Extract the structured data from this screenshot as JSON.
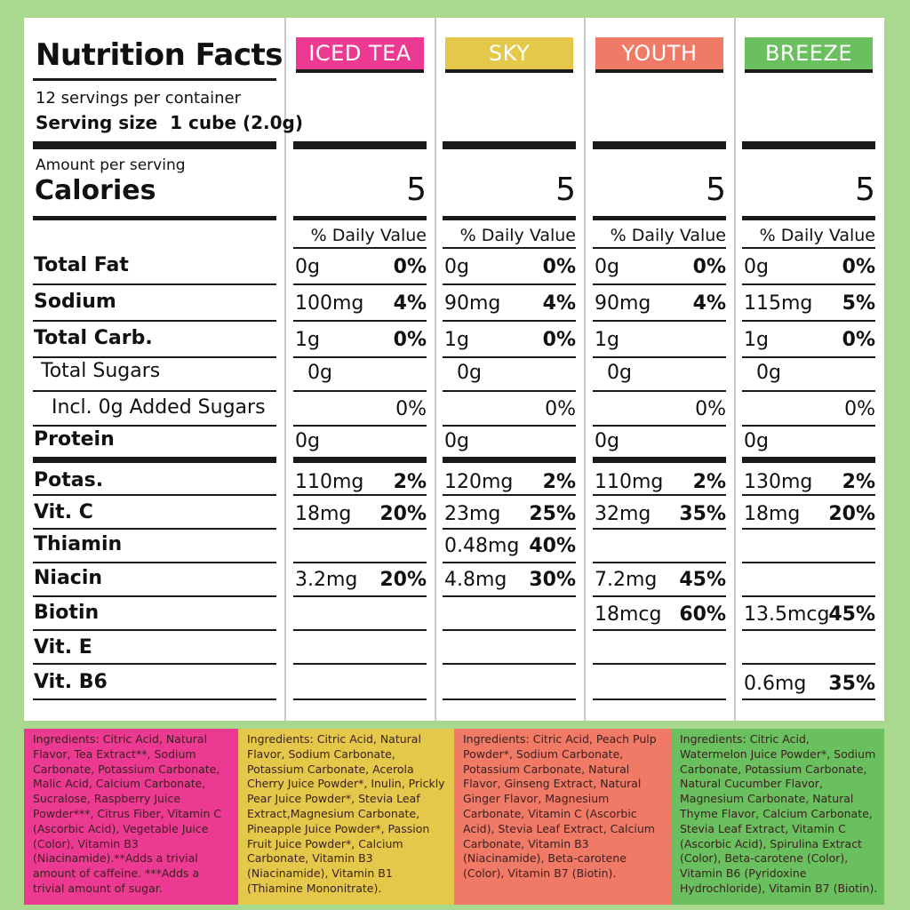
{
  "title": "Nutrition Facts",
  "servings": "12 servings per container",
  "serving_size_label": "Serving size",
  "serving_size_value": "1 cube (2.0g)",
  "amount_per_serving": "Amount per serving",
  "calories_label": "Calories",
  "daily_value_label": "% Daily Value",
  "rows": [
    {
      "label": "Total Fat"
    },
    {
      "label": "Sodium"
    },
    {
      "label": "Total Carb."
    },
    {
      "label": "Total Sugars"
    },
    {
      "label": "Incl. 0g Added Sugars"
    },
    {
      "label": "Protein"
    },
    {
      "label": "Potas."
    },
    {
      "label": "Vit. C"
    },
    {
      "label": "Thiamin"
    },
    {
      "label": "Niacin"
    },
    {
      "label": "Biotin"
    },
    {
      "label": "Vit. E"
    },
    {
      "label": "Vit. B6"
    }
  ],
  "products": [
    {
      "name": "ICED TEA",
      "color": "#ec3a93",
      "calories": "5",
      "values": [
        [
          "0g",
          "0%"
        ],
        [
          "100mg",
          "4%"
        ],
        [
          "1g",
          "0%"
        ],
        [
          "0g",
          ""
        ],
        [
          "",
          "0%"
        ],
        [
          "0g",
          ""
        ],
        [
          "110mg",
          "2%"
        ],
        [
          "18mg",
          "20%"
        ],
        [
          "",
          ""
        ],
        [
          "3.2mg",
          "20%"
        ],
        [
          "",
          ""
        ],
        [
          "",
          ""
        ],
        [
          "",
          ""
        ]
      ],
      "ingredients": "Ingredients: Citric Acid, Natural Flavor, Tea Extract**, Sodium Carbonate, Potassium Carbonate, Malic Acid, Calcium Carbonate, Sucralose, Raspberry Juice Powder***, Citrus Fiber, Vitamin C (Ascorbic Acid), Vegetable Juice (Color), Vitamin B3 (Niacinamide).**Adds a trivial amount of caffeine. ***Adds a trivial amount of sugar."
    },
    {
      "name": "SKY",
      "color": "#e3c84a",
      "calories": "5",
      "values": [
        [
          "0g",
          "0%"
        ],
        [
          "90mg",
          "4%"
        ],
        [
          "1g",
          "0%"
        ],
        [
          "0g",
          ""
        ],
        [
          "",
          "0%"
        ],
        [
          "0g",
          ""
        ],
        [
          "120mg",
          "2%"
        ],
        [
          "23mg",
          "25%"
        ],
        [
          "0.48mg",
          "40%"
        ],
        [
          "4.8mg",
          "30%"
        ],
        [
          "",
          ""
        ],
        [
          "",
          ""
        ],
        [
          "",
          ""
        ]
      ],
      "ingredients": "Ingredients: Citric Acid, Natural Flavor, Sodium Carbonate, Potassium Carbonate, Acerola Cherry Juice Powder*, Inulin, Prickly Pear Juice Powder*, Stevia Leaf Extract,Magnesium Carbonate, Pineapple Juice Powder*, Passion Fruit Juice Powder*, Calcium Carbonate, Vitamin B3 (Niacinamide), Vitamin B1 (Thiamine Mononitrate)."
    },
    {
      "name": "YOUTH",
      "color": "#f07a66",
      "calories": "5",
      "values": [
        [
          "0g",
          "0%"
        ],
        [
          "90mg",
          "4%"
        ],
        [
          "1g",
          ""
        ],
        [
          "0g",
          ""
        ],
        [
          "",
          "0%"
        ],
        [
          "0g",
          ""
        ],
        [
          "110mg",
          "2%"
        ],
        [
          "32mg",
          "35%"
        ],
        [
          "",
          ""
        ],
        [
          "7.2mg",
          "45%"
        ],
        [
          "18mcg",
          "60%"
        ],
        [
          "",
          ""
        ],
        [
          "",
          ""
        ]
      ],
      "ingredients": "Ingredients: Citric Acid, Peach Pulp Powder*, Sodium Carbonate, Potassium Carbonate, Natural Flavor, Ginseng Extract, Natural Ginger Flavor, Magnesium Carbonate, Vitamin C (Ascorbic Acid), Stevia Leaf Extract, Calcium Carbonate, Vitamin B3 (Niacinamide), Beta-carotene (Color), Vitamin B7 (Biotin)."
    },
    {
      "name": "BREEZE",
      "color": "#6abf5e",
      "calories": "5",
      "values": [
        [
          "0g",
          "0%"
        ],
        [
          "115mg",
          "5%"
        ],
        [
          "1g",
          "0%"
        ],
        [
          "0g",
          ""
        ],
        [
          "",
          "0%"
        ],
        [
          "0g",
          ""
        ],
        [
          "130mg",
          "2%"
        ],
        [
          "18mg",
          "20%"
        ],
        [
          "",
          ""
        ],
        [
          "",
          ""
        ],
        [
          "13.5mcg",
          "45%"
        ],
        [
          "",
          ""
        ],
        [
          "0.6mg",
          "35%"
        ]
      ],
      "ingredients": "Ingredients: Citric Acid, Watermelon Juice Powder*, Sodium Carbonate, Potassium Carbonate, Natural Cucumber Flavor, Magnesium Carbonate, Natural Thyme Flavor, Calcium Carbonate, Stevia Leaf Extract, Vitamin C (Ascorbic Acid), Spirulina Extract (Color), Beta-carotene (Color), Vitamin B6 (Pyridoxine Hydrochloride), Vitamin B7 (Biotin)."
    }
  ]
}
